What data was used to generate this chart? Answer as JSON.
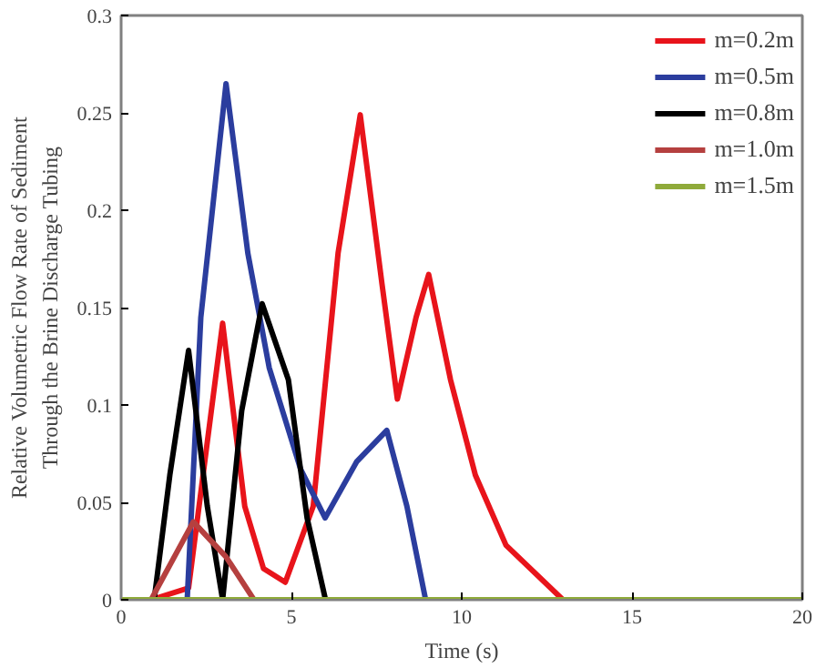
{
  "chart_data": {
    "type": "line",
    "xlabel": "Time (s)",
    "ylabel": "Relative Volumetric Flow Rate of Sediment\nThrough the Brine Discharge Tubing",
    "xlim": [
      0,
      20
    ],
    "xticks": [
      0,
      5,
      10,
      15,
      20
    ],
    "ylim": [
      0,
      0.3
    ],
    "yticks": [
      0,
      {
        "value": 0.05,
        "label": "0.05"
      },
      {
        "value": 0.1,
        "label": "0.1"
      },
      {
        "value": 0.15,
        "label": "0.15"
      },
      {
        "value": 0.2,
        "label": "0.2"
      },
      {
        "value": 0.25,
        "label": "0.25"
      },
      {
        "value": 0.3,
        "label": "0.3"
      }
    ],
    "grid": false,
    "legend": "top right",
    "line_style": "solid",
    "marker": "none",
    "series": [
      {
        "name": "m=0.2m",
        "color": "#e8141b",
        "x": [
          0.88,
          1.98,
          2.53,
          2.98,
          3.63,
          4.18,
          4.82,
          5.64,
          6.37,
          7.02,
          7.66,
          8.11,
          8.66,
          9.03,
          9.67,
          10.4,
          11.3,
          12.97,
          20
        ],
        "values": [
          0,
          0.006,
          0.081,
          0.142,
          0.048,
          0.016,
          0.009,
          0.048,
          0.178,
          0.249,
          0.162,
          0.103,
          0.145,
          0.167,
          0.113,
          0.064,
          0.028,
          0,
          0
        ]
      },
      {
        "name": "m=0.5m",
        "color": "#2b3d9e",
        "x": [
          1.94,
          2.34,
          3.08,
          3.72,
          4.35,
          5.27,
          5.99,
          6.92,
          7.8,
          8.39,
          8.94
        ],
        "values": [
          0,
          0.145,
          0.265,
          0.178,
          0.119,
          0.067,
          0.042,
          0.071,
          0.087,
          0.048,
          0
        ]
      },
      {
        "name": "m=0.8m",
        "color": "#000000",
        "x": [
          0.97,
          1.43,
          1.98,
          2.53,
          2.98,
          3.54,
          4.14,
          4.91,
          5.46,
          6.0
        ],
        "values": [
          0,
          0.064,
          0.128,
          0.048,
          0,
          0.097,
          0.152,
          0.113,
          0.042,
          0
        ]
      },
      {
        "name": "m=1.0m",
        "color": "#b5403f",
        "x": [
          0.88,
          2.12,
          3.08,
          3.9
        ],
        "values": [
          0,
          0.04,
          0.022,
          0
        ]
      },
      {
        "name": "m=1.5m",
        "color": "#8faa3a",
        "x": [
          0,
          20
        ],
        "values": [
          0,
          0
        ]
      }
    ]
  }
}
